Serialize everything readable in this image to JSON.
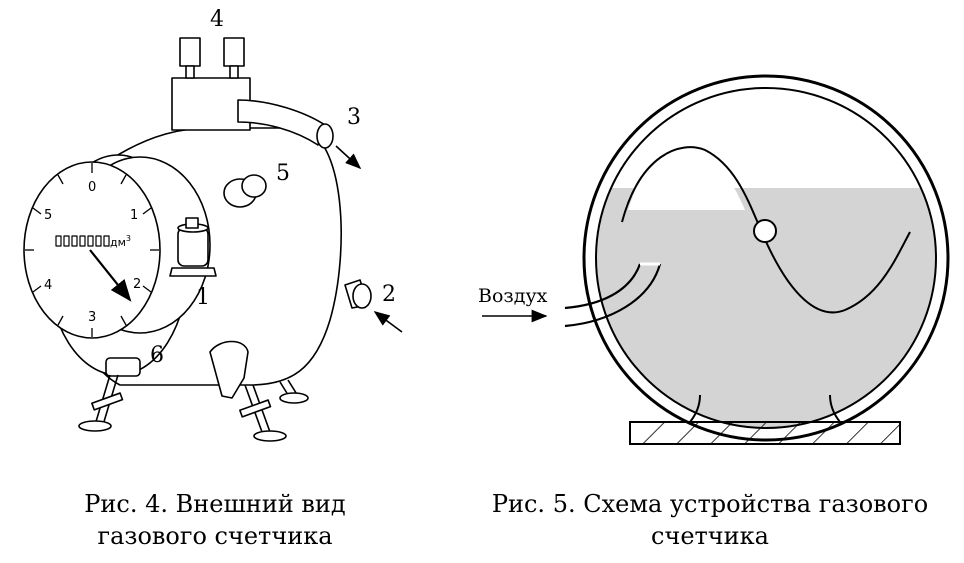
{
  "figure4": {
    "callouts": {
      "n1": "1",
      "n2": "2",
      "n3": "3",
      "n4": "4",
      "n5": "5",
      "n6": "6"
    },
    "dial": {
      "d0": "0",
      "d1": "1",
      "d2": "2",
      "d3": "3",
      "d4": "4",
      "d5": "5",
      "unit": "дм",
      "unit_exp": "3"
    },
    "caption_line1": "Рис. 4. Внешний вид",
    "caption_line2": "газового счетчика"
  },
  "figure5": {
    "air_label": "Воздух",
    "caption_line1": "Рис. 5. Схема устройства газового",
    "caption_line2": "счетчика"
  },
  "colors": {
    "line": "#000000",
    "water": "#d4d4d4",
    "background": "#ffffff"
  }
}
